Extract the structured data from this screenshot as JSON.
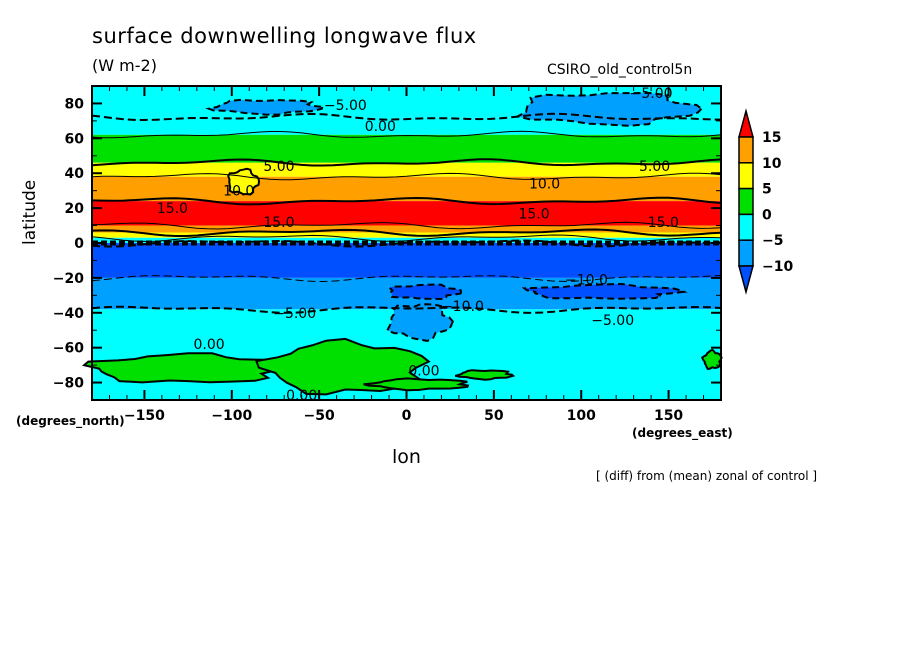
{
  "chart_data": {
    "type": "heatmap",
    "title": "surface downwelling longwave flux",
    "units": "(W m-2)",
    "dataset": "CSIRO_old_control5n",
    "xlabel": "lon",
    "ylabel": "latitude",
    "x_units": "(degrees_east)",
    "y_units": "(degrees_north)",
    "footnote": "[ (diff) from (mean) zonal of control ]",
    "xlim": [
      -180,
      180
    ],
    "ylim": [
      -90,
      90
    ],
    "x_ticks": [
      -150,
      -100,
      -50,
      0,
      50,
      100,
      150
    ],
    "x_tick_labels": [
      "-150",
      "-100",
      "-50",
      "0",
      "50",
      "100",
      "150"
    ],
    "y_ticks": [
      80,
      60,
      40,
      20,
      0,
      -20,
      -40,
      -60,
      -80
    ],
    "y_tick_labels": [
      "80",
      "60",
      "40",
      "20",
      "0",
      "-20",
      "-40",
      "-60",
      "-80"
    ],
    "colorbar": {
      "levels": [
        -10,
        -5,
        0,
        5,
        10,
        15
      ],
      "labels": [
        "15",
        "10",
        "5",
        "0",
        "-5",
        "-10"
      ],
      "colors": {
        "below_-10": "#0050ff",
        "-10_to_-5": "#00a0ff",
        "-5_to_0": "#00ffff",
        "0_to_5": "#00e000",
        "5_to_10": "#ffff00",
        "10_to_15": "#ffa000",
        "above_15": "#ff0000"
      },
      "extend": "both"
    },
    "zonal_bands": [
      {
        "lat_from": 90,
        "lat_to": 72,
        "class": "-5_to_0"
      },
      {
        "lat_from": 72,
        "lat_to": 62,
        "class": "-5_to_0"
      },
      {
        "lat_from": 62,
        "lat_to": 46,
        "class": "0_to_5"
      },
      {
        "lat_from": 46,
        "lat_to": 38,
        "class": "5_to_10"
      },
      {
        "lat_from": 38,
        "lat_to": 24,
        "class": "10_to_15"
      },
      {
        "lat_from": 24,
        "lat_to": 10,
        "class": "above_15"
      },
      {
        "lat_from": 10,
        "lat_to": 6,
        "class": "10_to_15"
      },
      {
        "lat_from": 6,
        "lat_to": 3,
        "class": "5_to_10"
      },
      {
        "lat_from": 3,
        "lat_to": 0,
        "class": "-5_to_0"
      },
      {
        "lat_from": 0,
        "lat_to": -20,
        "class": "below_-10"
      },
      {
        "lat_from": -20,
        "lat_to": -38,
        "class": "-10_to_-5"
      },
      {
        "lat_from": -38,
        "lat_to": -90,
        "class": "-5_to_0"
      }
    ],
    "patches": [
      {
        "name": "arctic-neg5-patch-west",
        "lon": [
          -110,
          -50
        ],
        "lat": [
          74,
          82
        ],
        "class": "-10_to_-5"
      },
      {
        "name": "arctic-neg5-patch-east",
        "lon": [
          65,
          165
        ],
        "lat": [
          68,
          86
        ],
        "class": "-10_to_-5"
      },
      {
        "name": "yellow-tongue",
        "lon": [
          -102,
          -85
        ],
        "lat": [
          28,
          42
        ],
        "class": "5_to_10"
      },
      {
        "name": "southern-green-west",
        "lon": [
          -180,
          -70
        ],
        "lat": [
          -80,
          -64
        ],
        "class": "0_to_5"
      },
      {
        "name": "southern-green-central",
        "lon": [
          -80,
          10
        ],
        "lat": [
          -86,
          -57
        ],
        "class": "0_to_5"
      },
      {
        "name": "southern-green-south",
        "lon": [
          -20,
          35
        ],
        "lat": [
          -84,
          -78
        ],
        "class": "0_to_5"
      },
      {
        "name": "southern-green-east-small",
        "lon": [
          30,
          60
        ],
        "lat": [
          -78,
          -73
        ],
        "class": "0_to_5"
      },
      {
        "name": "southern-neg5-tongue",
        "lon": [
          -10,
          25
        ],
        "lat": [
          -55,
          -35
        ],
        "class": "-10_to_-5"
      },
      {
        "name": "southern-neg10-blob-a",
        "lon": [
          -10,
          30
        ],
        "lat": [
          -32,
          -24
        ],
        "class": "below_-10"
      },
      {
        "name": "southern-neg10-blob-b",
        "lon": [
          70,
          155
        ],
        "lat": [
          -32,
          -24
        ],
        "class": "below_-10"
      },
      {
        "name": "southern-green-far-east",
        "lon": [
          170,
          180
        ],
        "lat": [
          -72,
          -62
        ],
        "class": "0_to_5"
      }
    ],
    "contour_labels": [
      {
        "text": "-5.00",
        "lon": -35,
        "lat": 79
      },
      {
        "text": "0.00",
        "lon": -15,
        "lat": 67
      },
      {
        "text": "5.00",
        "lon": -73,
        "lat": 44
      },
      {
        "text": "10.0",
        "lon": -96,
        "lat": 30
      },
      {
        "text": "15.0",
        "lon": -134,
        "lat": 20
      },
      {
        "text": "15.0",
        "lon": -73,
        "lat": 12
      },
      {
        "text": "-5.00",
        "lon": 140,
        "lat": 86
      },
      {
        "text": "5.00",
        "lon": 142,
        "lat": 44
      },
      {
        "text": "10.0",
        "lon": 79,
        "lat": 34
      },
      {
        "text": "15.0",
        "lon": 73,
        "lat": 17
      },
      {
        "text": "15.0",
        "lon": 147,
        "lat": 12
      },
      {
        "text": "-5.00",
        "lon": -64,
        "lat": -40
      },
      {
        "text": "-10.0",
        "lon": 103,
        "lat": -21
      },
      {
        "text": "-10.0",
        "lon": 32,
        "lat": -36
      },
      {
        "text": "-5.00",
        "lon": 118,
        "lat": -44
      },
      {
        "text": "0.00",
        "lon": -113,
        "lat": -58
      },
      {
        "text": "0.00",
        "lon": 10,
        "lat": -73
      },
      {
        "text": "0.00",
        "lon": -60,
        "lat": -87
      }
    ]
  }
}
